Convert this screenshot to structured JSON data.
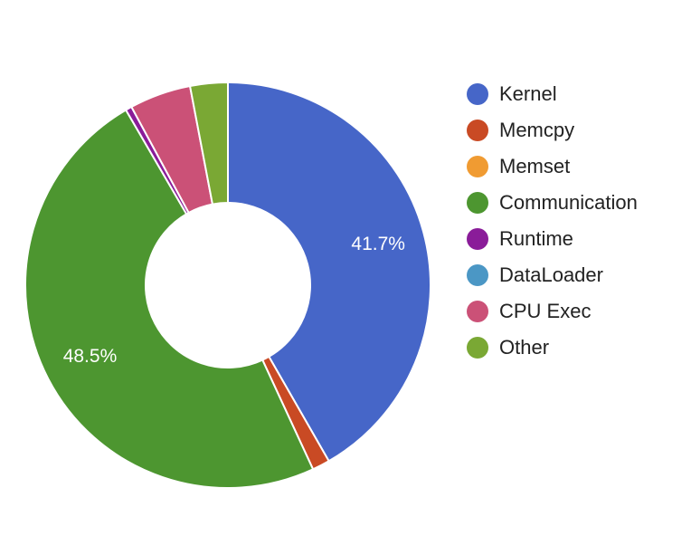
{
  "chart_data": {
    "type": "pie",
    "title": "",
    "legend_position": "right",
    "series": [
      {
        "categories": [
          "Kernel",
          "Memcpy",
          "Memset",
          "Communication",
          "Runtime",
          "DataLoader",
          "CPU Exec",
          "Other"
        ],
        "values": [
          41.7,
          1.4,
          0.0,
          48.5,
          0.5,
          0.0,
          4.9,
          3.0
        ],
        "colors": [
          "#4666c8",
          "#c94a24",
          "#f09b32",
          "#4d9630",
          "#8a1c99",
          "#4b97c5",
          "#cb5177",
          "#7aa834"
        ],
        "data_labels": {
          "Kernel": "41.7%",
          "Communication": "48.5%"
        }
      }
    ]
  }
}
